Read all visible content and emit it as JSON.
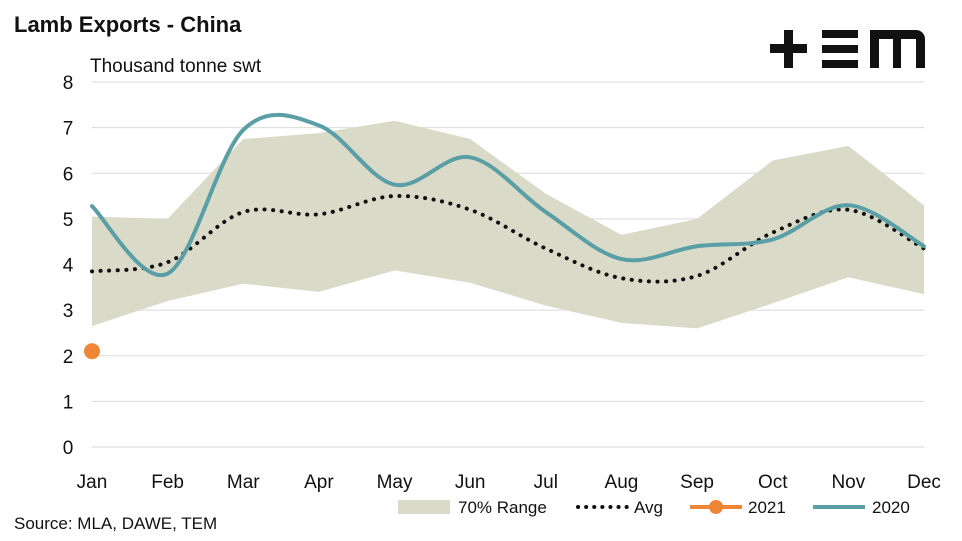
{
  "header": {
    "title": "Lamb Exports - China",
    "subtitle": "Thousand tonne swt",
    "source": "Source: MLA, DAWE, TEM",
    "logo_text": "TEM"
  },
  "chart_data": {
    "type": "line",
    "title": "Lamb Exports - China",
    "ylabel": "Thousand tonne swt",
    "xlabel": "",
    "categories": [
      "Jan",
      "Feb",
      "Mar",
      "Apr",
      "May",
      "Jun",
      "Jul",
      "Aug",
      "Sep",
      "Oct",
      "Nov",
      "Dec"
    ],
    "ylim": [
      0,
      8
    ],
    "yticks": [
      0,
      1,
      2,
      3,
      4,
      5,
      6,
      7,
      8
    ],
    "grid": true,
    "legend_position": "bottom-right",
    "range_band": {
      "name": "70% Range",
      "low": [
        2.65,
        3.2,
        3.58,
        3.4,
        3.87,
        3.6,
        3.1,
        2.72,
        2.6,
        3.15,
        3.72,
        3.35
      ],
      "high": [
        5.05,
        5.0,
        6.75,
        6.88,
        7.15,
        6.75,
        5.55,
        4.65,
        5.0,
        6.28,
        6.6,
        5.3
      ],
      "color": "#d9dbc8"
    },
    "series": [
      {
        "name": "Avg",
        "style": "dotted",
        "color": "#111111",
        "values": [
          3.85,
          4.05,
          5.15,
          5.1,
          5.5,
          5.2,
          4.35,
          3.7,
          3.75,
          4.7,
          5.2,
          4.35
        ]
      },
      {
        "name": "2021",
        "style": "marker",
        "color": "#ef8536",
        "values": [
          2.1,
          null,
          null,
          null,
          null,
          null,
          null,
          null,
          null,
          null,
          null,
          null
        ]
      },
      {
        "name": "2020",
        "style": "line",
        "color": "#5a9ea6",
        "values": [
          5.28,
          3.8,
          6.95,
          7.05,
          5.75,
          6.35,
          5.15,
          4.12,
          4.4,
          4.55,
          5.3,
          4.4
        ]
      }
    ]
  }
}
